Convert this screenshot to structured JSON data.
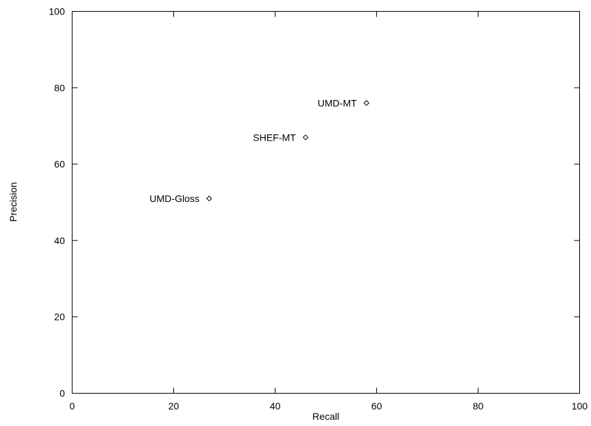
{
  "chart_data": {
    "type": "scatter",
    "title": "",
    "xlabel": "Recall",
    "ylabel": "Precision",
    "xlim": [
      0,
      100
    ],
    "ylim": [
      0,
      100
    ],
    "xticks": [
      "0",
      "20",
      "40",
      "60",
      "80",
      "100"
    ],
    "yticks": [
      "0",
      "20",
      "40",
      "60",
      "80",
      "100"
    ],
    "grid": false,
    "marker": "diamond",
    "points": [
      {
        "label": "UMD-MT",
        "x": 58,
        "y": 76
      },
      {
        "label": "SHEF-MT",
        "x": 46,
        "y": 67
      },
      {
        "label": "UMD-Gloss",
        "x": 27,
        "y": 51
      }
    ]
  }
}
